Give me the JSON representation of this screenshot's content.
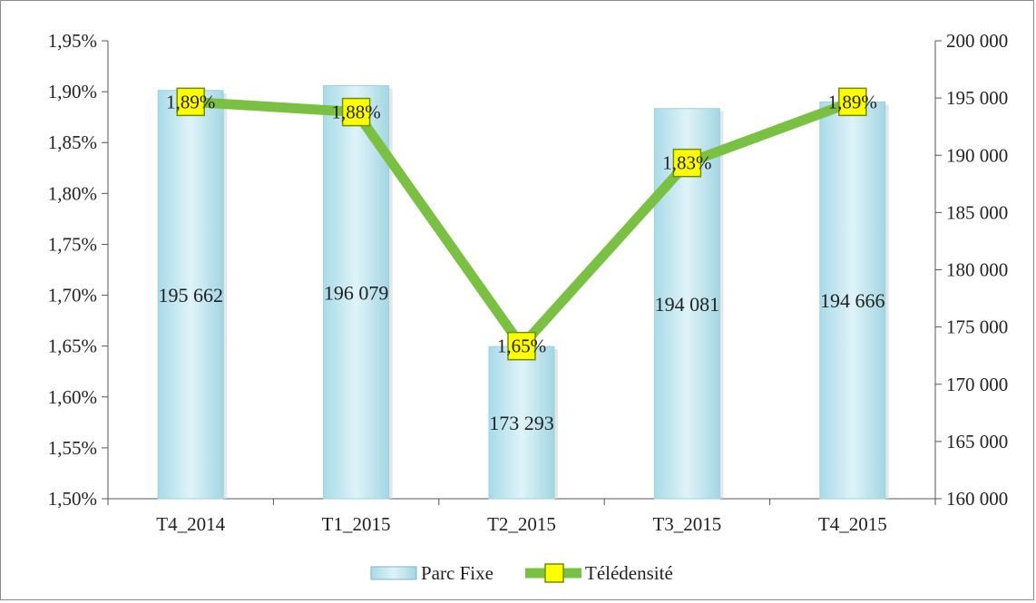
{
  "chart_data": {
    "type": "bar",
    "categories": [
      "T4_2014",
      "T1_2015",
      "T2_2015",
      "T3_2015",
      "T4_2015"
    ],
    "series": [
      {
        "name": "Parc Fixe",
        "type": "bar",
        "axis": "right",
        "values": [
          195662,
          196079,
          173293,
          194081,
          194666
        ],
        "labels": [
          "195 662",
          "196 079",
          "173 293",
          "194 081",
          "194 666"
        ],
        "color": "#bfe6ef"
      },
      {
        "name": "Télédensité",
        "type": "line",
        "axis": "left",
        "values": [
          1.89,
          1.88,
          1.65,
          1.83,
          1.89
        ],
        "labels": [
          "1,89%",
          "1,88%",
          "1,65%",
          "1,83%",
          "1,89%"
        ],
        "color": "#7ac143",
        "marker_color": "#ffff00"
      }
    ],
    "y_left": {
      "min": 1.5,
      "max": 1.95,
      "step": 0.05,
      "ticks": [
        "1,50%",
        "1,55%",
        "1,60%",
        "1,65%",
        "1,70%",
        "1,75%",
        "1,80%",
        "1,85%",
        "1,90%",
        "1,95%"
      ]
    },
    "y_right": {
      "min": 160000,
      "max": 200000,
      "step": 5000,
      "ticks": [
        "160 000",
        "165 000",
        "170 000",
        "175 000",
        "180 000",
        "185 000",
        "190 000",
        "195 000",
        "200 000"
      ]
    },
    "grid": false,
    "legend": "bottom"
  }
}
